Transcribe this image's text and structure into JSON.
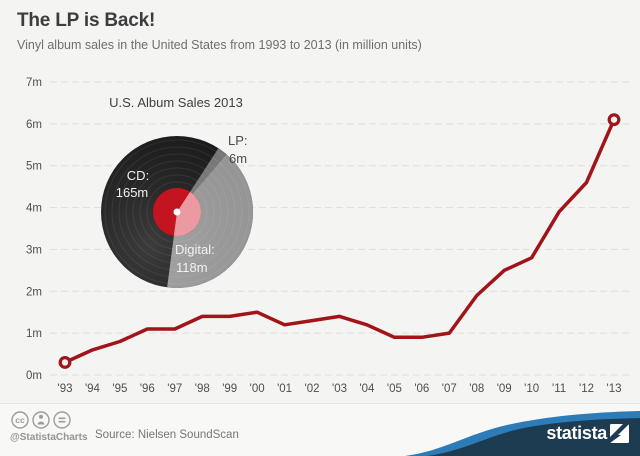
{
  "header": {
    "title": "The LP is Back!",
    "subtitle": "Vinyl album sales in the United States from 1993 to 2013 (in million units)"
  },
  "inset": {
    "title": "U.S. Album Sales 2013",
    "cd_label": "CD:",
    "cd_value": "165m",
    "digital_label": "Digital:",
    "digital_value": "118m",
    "lp_label": "LP:",
    "lp_value": "6m"
  },
  "footer": {
    "handle": "@StatistaCharts",
    "source": "Source: Nielsen SoundScan",
    "brand": "statista",
    "license_icons": [
      "cc-icon",
      "attribution-icon",
      "no-derivatives-icon"
    ]
  },
  "colors": {
    "background": "#f4f4f2",
    "line": "#a11419",
    "grid": "#dedeD9",
    "axis_text": "#4f4f4f",
    "vinyl_cd": "#1c1c1c",
    "vinyl_digital": "#959595",
    "vinyl_lp": "#767676",
    "label_red": "#c3141f",
    "label_pink": "#ec9aa1",
    "footer_navy": "#1d3c52",
    "footer_blue": "#2e7cb7"
  },
  "chart_data": [
    {
      "type": "line",
      "title": "Vinyl album sales in the United States 1993-2013",
      "ylabel": "sales in million units",
      "x": [
        "'93",
        "'94",
        "'95",
        "'96",
        "'97",
        "'98",
        "'99",
        "'00",
        "'01",
        "'02",
        "'03",
        "'04",
        "'05",
        "'06",
        "'07",
        "'08",
        "'09",
        "'10",
        "'11",
        "'12",
        "'13"
      ],
      "values": [
        0.3,
        0.6,
        0.8,
        1.1,
        1.1,
        1.4,
        1.4,
        1.5,
        1.2,
        1.3,
        1.4,
        1.2,
        0.9,
        0.9,
        1.0,
        1.9,
        2.5,
        2.8,
        3.9,
        4.6,
        6.1
      ],
      "ylim": [
        0,
        7
      ],
      "y_ticks": [
        "0m",
        "1m",
        "2m",
        "3m",
        "4m",
        "5m",
        "6m",
        "7m"
      ],
      "grid": true,
      "end_markers": true
    },
    {
      "type": "pie",
      "title": "U.S. Album Sales 2013",
      "units": "million albums",
      "start_angle_deg": 33,
      "slices": [
        {
          "name": "LP",
          "value": 6,
          "label": "LP: 6m"
        },
        {
          "name": "Digital",
          "value": 118,
          "label": "Digital: 118m"
        },
        {
          "name": "CD",
          "value": 165,
          "label": "CD: 165m"
        }
      ]
    }
  ]
}
